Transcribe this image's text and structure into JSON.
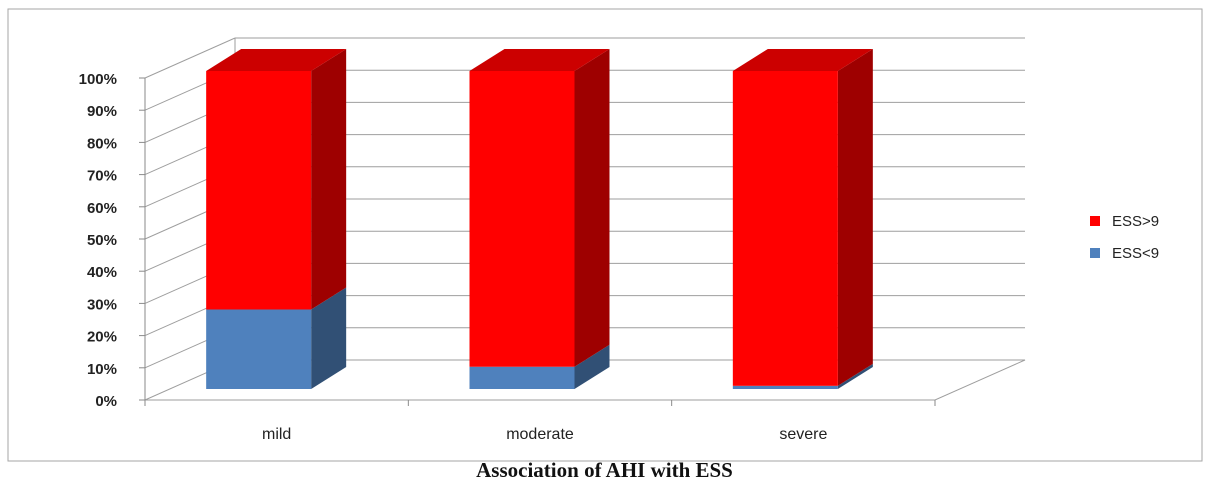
{
  "chart_data": {
    "type": "bar",
    "stacked": true,
    "three_d": true,
    "caption": "Association of AHI with ESS",
    "categories": [
      "mild",
      "moderate",
      "severe"
    ],
    "series": [
      {
        "name": "ESS<9",
        "color": "#4F81BD",
        "values": [
          25,
          7,
          1
        ]
      },
      {
        "name": "ESS>9",
        "color": "#FF0000",
        "values": [
          75,
          93,
          99
        ]
      }
    ],
    "ylim": [
      0,
      100
    ],
    "y_ticks": [
      "0%",
      "10%",
      "20%",
      "30%",
      "40%",
      "50%",
      "60%",
      "70%",
      "80%",
      "90%",
      "100%"
    ],
    "grid": true,
    "legend_position": "right"
  }
}
